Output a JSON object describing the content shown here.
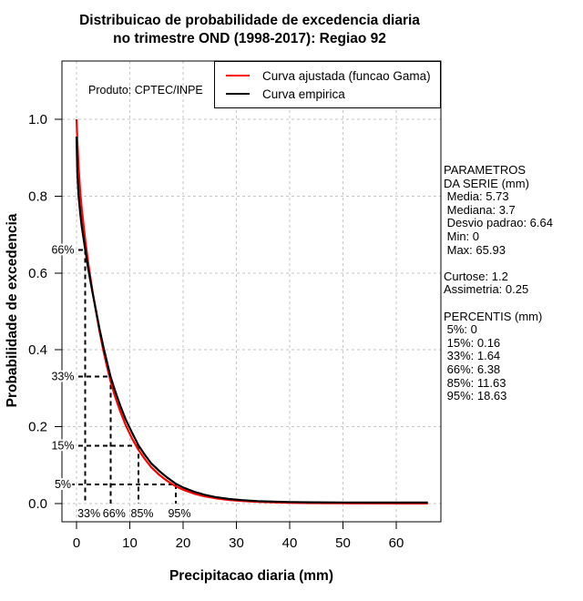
{
  "title": {
    "line1": "Distribuicao de probabilidade de excedencia diaria",
    "line2": "no trimestre OND (1998-2017): Regiao 92"
  },
  "plot": {
    "product_label": "Produto: CPTEC/INPE",
    "legend": [
      {
        "label": "Curva ajustada (funcao Gama)",
        "color": "#ff0000"
      },
      {
        "label": "Curva empirica",
        "color": "#000000"
      }
    ]
  },
  "stats_panel": {
    "lines": [
      "PARAMETROS",
      "DA SERIE (mm)",
      " Media: 5.73",
      " Mediana: 3.7",
      " Desvio padrao: 6.64",
      " Min: 0",
      " Max: 65.93",
      "",
      "Curtose: 1.2",
      "Assimetria: 0.25",
      "",
      "PERCENTIS (mm)",
      " 5%: 0",
      " 15%: 0.16",
      " 33%: 1.64",
      " 66%: 6.38",
      " 85%: 11.63",
      " 95%: 18.63"
    ]
  },
  "chart_data": {
    "type": "line",
    "title": "Distribuicao de probabilidade de excedencia diaria no trimestre OND (1998-2017): Regiao 92",
    "xlabel": "Precipitacao diaria (mm)",
    "ylabel": "Probabilidade de excedencia",
    "xlim": [
      -2.7,
      68.4
    ],
    "ylim": [
      -0.047,
      1.15
    ],
    "grid": true,
    "legend_position": "top-right",
    "xticks": [
      0,
      10,
      20,
      30,
      40,
      50,
      60
    ],
    "xtick_labels": [
      "0",
      "10",
      "20",
      "30",
      "40",
      "50",
      "60"
    ],
    "yticks": [
      0.0,
      0.2,
      0.4,
      0.6,
      0.8,
      1.0
    ],
    "ytick_labels": [
      "0.0",
      "0.2",
      "0.4",
      "0.6",
      "0.8",
      "1.0"
    ],
    "percentile_guides": [
      {
        "prob": 0.66,
        "prob_label": "66%",
        "x": 1.64,
        "x_label": "33%"
      },
      {
        "prob": 0.33,
        "prob_label": "33%",
        "x": 6.38,
        "x_label": "66%"
      },
      {
        "prob": 0.15,
        "prob_label": "15%",
        "x": 11.63,
        "x_label": "85%"
      },
      {
        "prob": 0.05,
        "prob_label": "5%",
        "x": 18.63,
        "x_label": "95%"
      }
    ],
    "series": [
      {
        "name": "Curva ajustada (funcao Gama)",
        "color": "#ff0000",
        "points": [
          [
            0,
            1.0
          ],
          [
            0.15,
            0.945
          ],
          [
            0.4,
            0.875
          ],
          [
            0.7,
            0.81
          ],
          [
            1.0,
            0.765
          ],
          [
            1.64,
            0.685
          ],
          [
            2.2,
            0.625
          ],
          [
            3.0,
            0.553
          ],
          [
            3.7,
            0.497
          ],
          [
            4.3,
            0.449
          ],
          [
            5.0,
            0.4
          ],
          [
            5.6,
            0.363
          ],
          [
            6.4,
            0.318
          ],
          [
            7.2,
            0.28
          ],
          [
            8.2,
            0.24
          ],
          [
            9.2,
            0.205
          ],
          [
            10.4,
            0.17
          ],
          [
            11.6,
            0.14
          ],
          [
            12.8,
            0.116
          ],
          [
            14,
            0.095
          ],
          [
            15.5,
            0.075
          ],
          [
            17,
            0.059
          ],
          [
            18.6,
            0.045
          ],
          [
            20,
            0.036
          ],
          [
            22,
            0.026
          ],
          [
            24,
            0.019
          ],
          [
            26,
            0.014
          ],
          [
            28.5,
            0.0095
          ],
          [
            31,
            0.0066
          ],
          [
            34,
            0.0044
          ],
          [
            37,
            0.003
          ],
          [
            40,
            0.0021
          ],
          [
            44,
            0.0013
          ],
          [
            50,
            0.0007
          ],
          [
            56,
            0.0004
          ],
          [
            62,
            0.0002
          ],
          [
            65.93,
            0.0002
          ]
        ]
      },
      {
        "name": "Curva empirica",
        "color": "#000000",
        "points": [
          [
            0,
            0.955
          ],
          [
            0.16,
            0.86
          ],
          [
            0.4,
            0.8
          ],
          [
            0.7,
            0.755
          ],
          [
            1.0,
            0.72
          ],
          [
            1.64,
            0.66
          ],
          [
            2.2,
            0.61
          ],
          [
            3.0,
            0.55
          ],
          [
            3.7,
            0.5
          ],
          [
            4.3,
            0.455
          ],
          [
            5.0,
            0.41
          ],
          [
            5.6,
            0.375
          ],
          [
            6.4,
            0.33
          ],
          [
            7.2,
            0.295
          ],
          [
            8.2,
            0.255
          ],
          [
            9.2,
            0.22
          ],
          [
            10.4,
            0.185
          ],
          [
            11.6,
            0.152
          ],
          [
            12.8,
            0.127
          ],
          [
            14,
            0.105
          ],
          [
            15.5,
            0.085
          ],
          [
            17,
            0.068
          ],
          [
            18.6,
            0.052
          ],
          [
            20,
            0.042
          ],
          [
            22,
            0.031
          ],
          [
            24,
            0.023
          ],
          [
            26,
            0.017
          ],
          [
            28.5,
            0.012
          ],
          [
            31,
            0.009
          ],
          [
            34,
            0.0065
          ],
          [
            37,
            0.005
          ],
          [
            40,
            0.004
          ],
          [
            44,
            0.0032
          ],
          [
            50,
            0.0028
          ],
          [
            56,
            0.0027
          ],
          [
            62,
            0.0026
          ],
          [
            65.93,
            0.0026
          ]
        ]
      }
    ],
    "annotations": {
      "product": "Produto: CPTEC/INPE",
      "parametros_da_serie_mm": {
        "media": 5.73,
        "mediana": 3.7,
        "desvio_padrao": 6.64,
        "min": 0,
        "max": 65.93,
        "curtose": 1.2,
        "assimetria": 0.25
      },
      "percentis_mm": {
        "5%": 0,
        "15%": 0.16,
        "33%": 1.64,
        "66%": 6.38,
        "85%": 11.63,
        "95%": 18.63
      }
    }
  }
}
